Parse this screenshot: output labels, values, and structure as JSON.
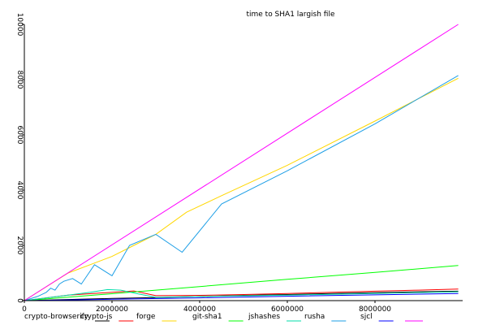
{
  "chart_data": {
    "type": "line",
    "title": "time to SHA1 largish file",
    "xlabel": "",
    "ylabel": "",
    "xlim": [
      0,
      10000000
    ],
    "ylim": [
      0,
      10000
    ],
    "x_ticks": [
      0,
      2000000,
      4000000,
      6000000,
      8000000
    ],
    "x_tick_labels": [
      "0",
      "2000000",
      "4000000",
      "6000000",
      "8000000"
    ],
    "y_ticks": [
      0,
      2000,
      4000,
      6000,
      8000,
      10000
    ],
    "y_tick_labels": [
      "0",
      "2000",
      "4000",
      "6000",
      "8000",
      "10000"
    ],
    "grid": false,
    "legend_position": "bottom",
    "series": [
      {
        "name": "crypto-browserify",
        "color": "#000000",
        "x": [
          0,
          1000000,
          2000000,
          3000000,
          4000000,
          5000000,
          6000000,
          7000000,
          8000000,
          9000000,
          9900000
        ],
        "y": [
          0,
          40,
          80,
          110,
          150,
          190,
          220,
          260,
          290,
          320,
          340
        ]
      },
      {
        "name": "crypto-js",
        "color": "#ff0000",
        "x": [
          0,
          500000,
          1000000,
          1500000,
          2000000,
          2500000,
          3000000,
          4000000,
          5000000,
          6000000,
          7000000,
          8000000,
          9000000,
          9900000
        ],
        "y": [
          0,
          100,
          200,
          250,
          300,
          350,
          180,
          190,
          220,
          260,
          300,
          340,
          380,
          420
        ]
      },
      {
        "name": "forge",
        "color": "#ffd700",
        "x": [
          0,
          500000,
          1000000,
          1500000,
          2000000,
          2500000,
          3000000,
          3700000,
          4500000,
          6000000,
          8000000,
          9900000
        ],
        "y": [
          0,
          500,
          1000,
          1300,
          1600,
          2000,
          2400,
          3200,
          3800,
          4900,
          6500,
          8050
        ]
      },
      {
        "name": "git-sha1",
        "color": "#00ff00",
        "x": [
          0,
          2000000,
          4000000,
          6000000,
          8000000,
          9900000
        ],
        "y": [
          0,
          250,
          510,
          770,
          1020,
          1270
        ]
      },
      {
        "name": "jshashes",
        "color": "#00ddaa",
        "x": [
          0,
          500000,
          1000000,
          1500000,
          1900000,
          2200000,
          2600000,
          3000000,
          4000000,
          6000000,
          8000000,
          9900000
        ],
        "y": [
          0,
          100,
          200,
          300,
          400,
          380,
          240,
          120,
          150,
          200,
          260,
          320
        ]
      },
      {
        "name": "rusha",
        "color": "#1e9fe6",
        "x": [
          0,
          300000,
          500000,
          600000,
          700000,
          800000,
          900000,
          1100000,
          1300000,
          1600000,
          2000000,
          2400000,
          3000000,
          3600000,
          4500000,
          6000000,
          8000000,
          9900000
        ],
        "y": [
          0,
          150,
          300,
          450,
          380,
          600,
          700,
          800,
          600,
          1300,
          900,
          2000,
          2400,
          1750,
          3500,
          4700,
          6400,
          8150
        ]
      },
      {
        "name": "sjcl",
        "color": "#0000ff",
        "x": [
          0,
          2000000,
          4000000,
          6000000,
          8000000,
          9900000
        ],
        "y": [
          0,
          50,
          100,
          160,
          210,
          260
        ]
      },
      {
        "name": "",
        "color": "#ff00ff",
        "x": [
          0,
          9900000
        ],
        "y": [
          0,
          10000
        ]
      }
    ]
  }
}
